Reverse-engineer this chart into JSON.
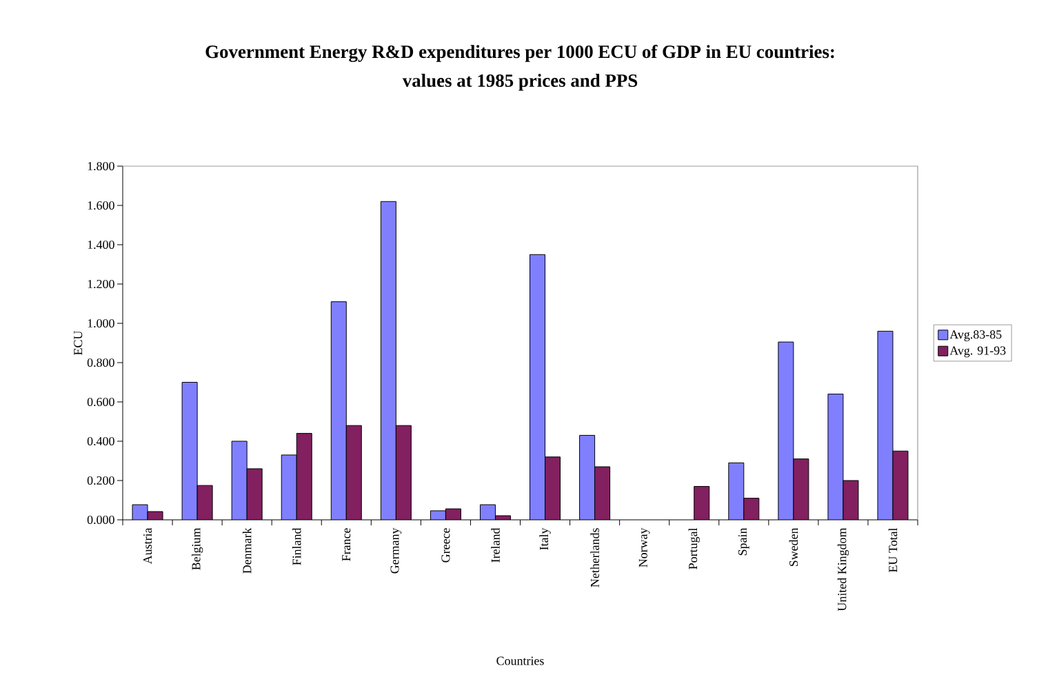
{
  "chart_data": {
    "type": "bar",
    "title": "Government Energy R&D expenditures per  1000 ECU of GDP in EU countries:\nvalues at 1985 prices and PPS",
    "xlabel": "Countries",
    "ylabel": "ECU",
    "categories": [
      "Austria",
      "Belgium",
      "Denmark",
      "Finland",
      "France",
      "Germany",
      "Greece",
      "Ireland",
      "Italy",
      "Netherlands",
      "Norway",
      "Portugal",
      "Spain",
      "Sweden",
      "United Kingdom",
      "EU Total"
    ],
    "series": [
      {
        "name": "Avg.83-85",
        "color": "#8080ff",
        "values": [
          0.077,
          0.7,
          0.4,
          0.33,
          1.11,
          1.62,
          0.046,
          0.077,
          1.35,
          0.43,
          null,
          null,
          0.29,
          0.905,
          0.64,
          0.96
        ]
      },
      {
        "name": "Avg. 91-93",
        "color": "#822060",
        "values": [
          0.042,
          0.175,
          0.26,
          0.44,
          0.48,
          0.48,
          0.056,
          0.021,
          0.32,
          0.27,
          null,
          0.17,
          0.11,
          0.31,
          0.2,
          0.35
        ]
      }
    ],
    "ylim": [
      0,
      1.8
    ],
    "yticks": [
      {
        "value": 0,
        "label": "0.000"
      },
      {
        "value": 0.2,
        "label": "0.200"
      },
      {
        "value": 0.4,
        "label": "0.400"
      },
      {
        "value": 0.6,
        "label": "0.600"
      },
      {
        "value": 0.8,
        "label": "0.800"
      },
      {
        "value": 1.0,
        "label": "1.000"
      },
      {
        "value": 1.2,
        "label": "1.200"
      },
      {
        "value": 1.4,
        "label": "1.400"
      },
      {
        "value": 1.6,
        "label": "1.600"
      },
      {
        "value": 1.8,
        "label": "1.800"
      }
    ],
    "grid": false,
    "legend": "right"
  }
}
